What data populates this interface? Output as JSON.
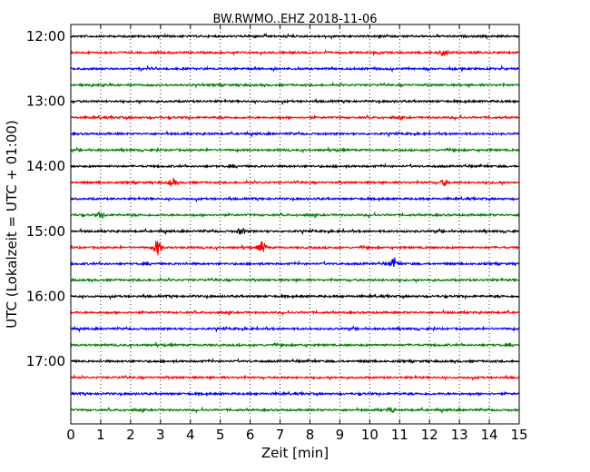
{
  "chart_data": {
    "type": "line",
    "title": "BW.RWMO..EHZ 2018-11-06",
    "xlabel": "Zeit  [min]",
    "ylabel": "UTC (Lokalzeit = UTC + 01:00)",
    "xlim": [
      0,
      15
    ],
    "x_ticks": [
      "0",
      "1",
      "2",
      "3",
      "4",
      "5",
      "6",
      "7",
      "8",
      "9",
      "10",
      "11",
      "12",
      "13",
      "14",
      "15"
    ],
    "y_ticks": [
      {
        "label": "12:00",
        "row": 0
      },
      {
        "label": "13:00",
        "row": 4
      },
      {
        "label": "14:00",
        "row": 8
      },
      {
        "label": "15:00",
        "row": 12
      },
      {
        "label": "16:00",
        "row": 16
      },
      {
        "label": "17:00",
        "row": 20
      }
    ],
    "grid": {
      "vertical_dotted": true
    },
    "colors": [
      "#000000",
      "#ff0000",
      "#0000ff",
      "#008000"
    ],
    "traces": [
      {
        "start": "12:00",
        "color": "#000000",
        "events": []
      },
      {
        "start": "12:15",
        "color": "#ff0000",
        "events": [
          {
            "t": 12.5,
            "amp": 1.3
          }
        ]
      },
      {
        "start": "12:30",
        "color": "#0000ff",
        "events": []
      },
      {
        "start": "12:45",
        "color": "#008000",
        "events": []
      },
      {
        "start": "13:00",
        "color": "#000000",
        "events": []
      },
      {
        "start": "13:15",
        "color": "#ff0000",
        "events": []
      },
      {
        "start": "13:30",
        "color": "#0000ff",
        "events": []
      },
      {
        "start": "13:45",
        "color": "#008000",
        "events": []
      },
      {
        "start": "14:00",
        "color": "#000000",
        "events": []
      },
      {
        "start": "14:15",
        "color": "#ff0000",
        "events": [
          {
            "t": 3.4,
            "amp": 1.3
          },
          {
            "t": 12.5,
            "amp": 1.0
          }
        ]
      },
      {
        "start": "14:30",
        "color": "#0000ff",
        "events": []
      },
      {
        "start": "14:45",
        "color": "#008000",
        "events": [
          {
            "t": 1.0,
            "amp": 1.0
          }
        ]
      },
      {
        "start": "15:00",
        "color": "#000000",
        "events": [
          {
            "t": 5.7,
            "amp": 1.0
          }
        ]
      },
      {
        "start": "15:15",
        "color": "#ff0000",
        "events": [
          {
            "t": 2.9,
            "amp": 2.8
          },
          {
            "t": 6.4,
            "amp": 2.0
          }
        ]
      },
      {
        "start": "15:30",
        "color": "#0000ff",
        "events": [
          {
            "t": 10.8,
            "amp": 1.6
          }
        ]
      },
      {
        "start": "15:45",
        "color": "#008000",
        "events": []
      },
      {
        "start": "16:00",
        "color": "#000000",
        "events": []
      },
      {
        "start": "16:15",
        "color": "#ff0000",
        "events": []
      },
      {
        "start": "16:30",
        "color": "#0000ff",
        "events": []
      },
      {
        "start": "16:45",
        "color": "#008000",
        "events": []
      },
      {
        "start": "17:00",
        "color": "#000000",
        "events": []
      },
      {
        "start": "17:15",
        "color": "#ff0000",
        "events": []
      },
      {
        "start": "17:30",
        "color": "#0000ff",
        "events": []
      },
      {
        "start": "17:45",
        "color": "#008000",
        "events": [
          {
            "t": 10.7,
            "amp": 0.8
          }
        ]
      }
    ]
  }
}
